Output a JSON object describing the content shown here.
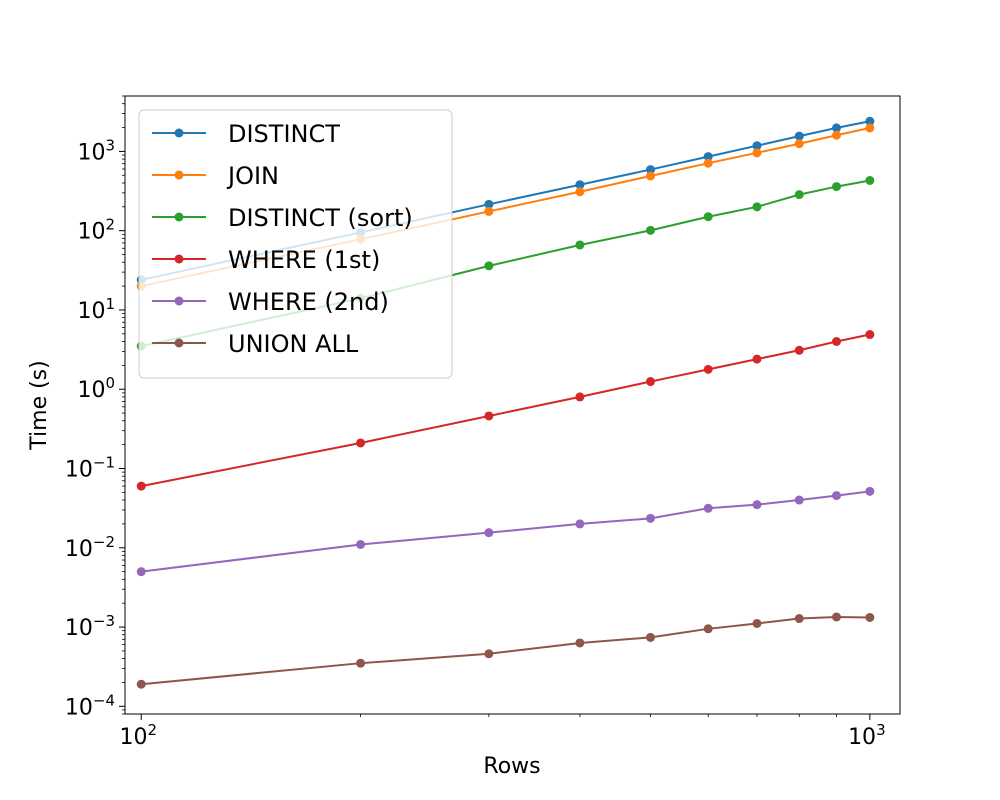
{
  "chart_data": {
    "type": "line",
    "title": "",
    "xlabel": "Rows",
    "ylabel": "Time (s)",
    "xscale": "log",
    "yscale": "log",
    "xlim": [
      95,
      1100
    ],
    "ylim": [
      8e-05,
      5000
    ],
    "grid": false,
    "legend_position": "upper-left",
    "x": [
      100,
      200,
      300,
      400,
      500,
      600,
      700,
      800,
      900,
      1000
    ],
    "x_ticks": [
      {
        "value": 100,
        "base": "10",
        "exp": "2"
      },
      {
        "value": 1000,
        "base": "10",
        "exp": "3"
      }
    ],
    "y_ticks": [
      {
        "value": 0.0001,
        "base": "10",
        "exp": "−4"
      },
      {
        "value": 0.001,
        "base": "10",
        "exp": "−3"
      },
      {
        "value": 0.01,
        "base": "10",
        "exp": "−2"
      },
      {
        "value": 0.1,
        "base": "10",
        "exp": "−1"
      },
      {
        "value": 1,
        "base": "10",
        "exp": "0"
      },
      {
        "value": 10,
        "base": "10",
        "exp": "1"
      },
      {
        "value": 100,
        "base": "10",
        "exp": "2"
      },
      {
        "value": 1000,
        "base": "10",
        "exp": "3"
      }
    ],
    "series": [
      {
        "name": "DISTINCT",
        "color": "#1f77b4",
        "values": [
          24,
          95,
          215,
          380,
          590,
          860,
          1180,
          1560,
          1980,
          2400
        ]
      },
      {
        "name": "JOIN",
        "color": "#ff7f0e",
        "values": [
          20,
          78,
          175,
          310,
          490,
          710,
          960,
          1250,
          1600,
          1980
        ]
      },
      {
        "name": "DISTINCT (sort)",
        "color": "#2ca02c",
        "values": [
          3.5,
          14,
          36,
          66,
          101,
          150,
          200,
          285,
          360,
          430
        ]
      },
      {
        "name": "WHERE (1st)",
        "color": "#d62728",
        "values": [
          0.06,
          0.21,
          0.46,
          0.8,
          1.25,
          1.78,
          2.4,
          3.1,
          4.0,
          4.9
        ]
      },
      {
        "name": "WHERE (2nd)",
        "color": "#9467bd",
        "values": [
          0.005,
          0.011,
          0.0155,
          0.02,
          0.0235,
          0.0315,
          0.035,
          0.04,
          0.0455,
          0.0515
        ]
      },
      {
        "name": "UNION ALL",
        "color": "#8c564b",
        "values": [
          0.00019,
          0.00035,
          0.00046,
          0.00063,
          0.00074,
          0.00095,
          0.00111,
          0.00128,
          0.00134,
          0.00132
        ]
      }
    ]
  }
}
